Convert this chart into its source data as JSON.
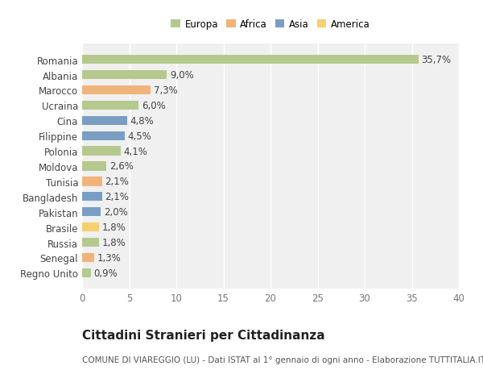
{
  "categories": [
    "Romania",
    "Albania",
    "Marocco",
    "Ucraina",
    "Cina",
    "Filippine",
    "Polonia",
    "Moldova",
    "Tunisia",
    "Bangladesh",
    "Pakistan",
    "Brasile",
    "Russia",
    "Senegal",
    "Regno Unito"
  ],
  "values": [
    35.7,
    9.0,
    7.3,
    6.0,
    4.8,
    4.5,
    4.1,
    2.6,
    2.1,
    2.1,
    2.0,
    1.8,
    1.8,
    1.3,
    0.9
  ],
  "labels": [
    "35,7%",
    "9,0%",
    "7,3%",
    "6,0%",
    "4,8%",
    "4,5%",
    "4,1%",
    "2,6%",
    "2,1%",
    "2,1%",
    "2,0%",
    "1,8%",
    "1,8%",
    "1,3%",
    "0,9%"
  ],
  "colors": [
    "#b5c98e",
    "#b5c98e",
    "#f0b47a",
    "#b5c98e",
    "#7a9dc4",
    "#7a9dc4",
    "#b5c98e",
    "#b5c98e",
    "#f0b47a",
    "#7a9dc4",
    "#7a9dc4",
    "#f5d06e",
    "#b5c98e",
    "#f0b47a",
    "#b5c98e"
  ],
  "legend_labels": [
    "Europa",
    "Africa",
    "Asia",
    "America"
  ],
  "legend_colors": [
    "#b5c98e",
    "#f0b47a",
    "#7a9dc4",
    "#f5d06e"
  ],
  "title": "Cittadini Stranieri per Cittadinanza",
  "subtitle": "COMUNE DI VIAREGGIO (LU) - Dati ISTAT al 1° gennaio di ogni anno - Elaborazione TUTTITALIA.IT",
  "xlim": [
    0,
    40
  ],
  "xticks": [
    0,
    5,
    10,
    15,
    20,
    25,
    30,
    35,
    40
  ],
  "background_color": "#ffffff",
  "plot_bg_color": "#f0f0f0",
  "grid_color": "#ffffff",
  "bar_height": 0.6,
  "label_fontsize": 8.5,
  "tick_fontsize": 8.5,
  "title_fontsize": 11,
  "subtitle_fontsize": 7.5
}
